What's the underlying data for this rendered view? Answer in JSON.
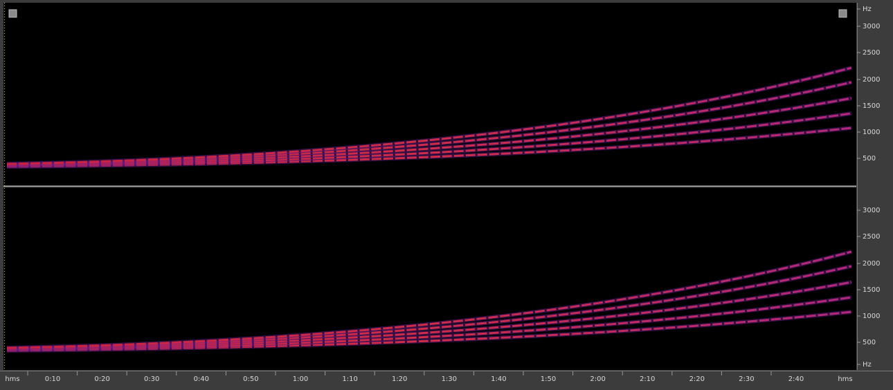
{
  "top_panel": {
    "freq_labels": [
      "Hz",
      "3000",
      "2500",
      "2000",
      "1500",
      "1000",
      "500"
    ]
  },
  "bottom_panel": {
    "freq_labels": [
      "3000",
      "2500",
      "2000",
      "1500",
      "1000",
      "500",
      "Hz"
    ]
  },
  "time_axis": {
    "labels": [
      "hms",
      "0:10",
      "0:20",
      "0:30",
      "0:40",
      "0:50",
      "1:00",
      "1:10",
      "1:20",
      "1:30",
      "1:40",
      "1:50",
      "2:00",
      "2:10",
      "2:20",
      "2:30",
      "2:40",
      "hms"
    ]
  }
}
